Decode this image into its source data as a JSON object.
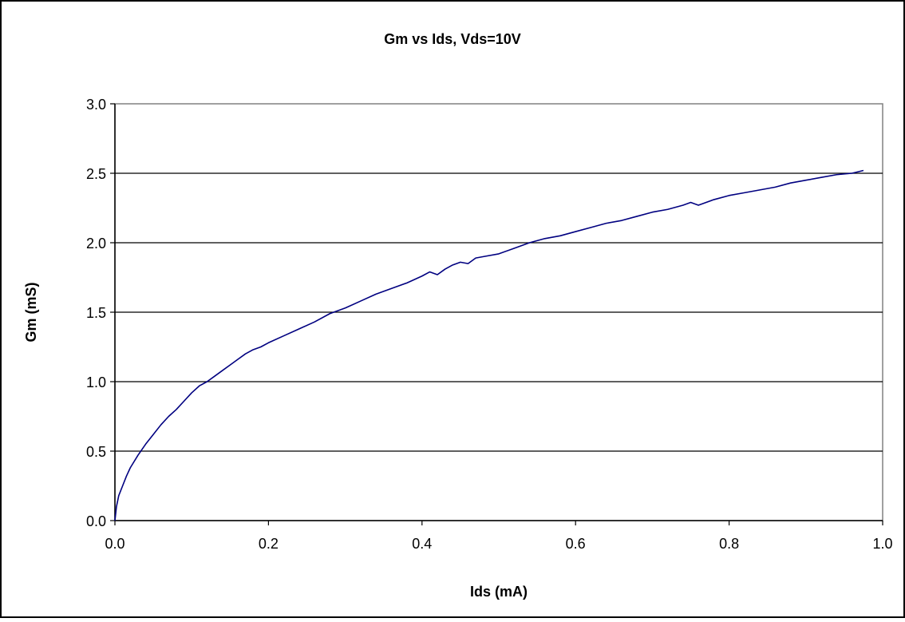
{
  "chart_data": {
    "type": "line",
    "title": "Gm vs Ids,  Vds=10V",
    "xlabel": "Ids (mA)",
    "ylabel": "Gm (mS)",
    "xlim": [
      0.0,
      1.0
    ],
    "ylim": [
      0.0,
      3.0
    ],
    "x_ticks": [
      "0.0",
      "0.2",
      "0.4",
      "0.6",
      "0.8",
      "1.0"
    ],
    "y_ticks": [
      "0.0",
      "0.5",
      "1.0",
      "1.5",
      "2.0",
      "2.5",
      "3.0"
    ],
    "grid": "horizontal",
    "legend": "none",
    "line_color": "#000080",
    "series": [
      {
        "x": [
          0.0,
          0.002,
          0.005,
          0.01,
          0.015,
          0.02,
          0.03,
          0.04,
          0.05,
          0.06,
          0.07,
          0.08,
          0.09,
          0.1,
          0.11,
          0.12,
          0.13,
          0.14,
          0.15,
          0.16,
          0.17,
          0.18,
          0.19,
          0.2,
          0.22,
          0.24,
          0.26,
          0.28,
          0.3,
          0.32,
          0.34,
          0.36,
          0.38,
          0.4,
          0.41,
          0.42,
          0.43,
          0.44,
          0.45,
          0.46,
          0.47,
          0.48,
          0.5,
          0.52,
          0.54,
          0.56,
          0.58,
          0.6,
          0.62,
          0.64,
          0.66,
          0.68,
          0.7,
          0.72,
          0.74,
          0.75,
          0.76,
          0.78,
          0.8,
          0.82,
          0.84,
          0.86,
          0.88,
          0.9,
          0.92,
          0.94,
          0.96,
          0.975
        ],
        "values": [
          0.0,
          0.1,
          0.18,
          0.25,
          0.32,
          0.38,
          0.47,
          0.55,
          0.62,
          0.69,
          0.75,
          0.8,
          0.86,
          0.92,
          0.97,
          1.0,
          1.04,
          1.08,
          1.12,
          1.16,
          1.2,
          1.23,
          1.25,
          1.28,
          1.33,
          1.38,
          1.43,
          1.49,
          1.53,
          1.58,
          1.63,
          1.67,
          1.71,
          1.76,
          1.79,
          1.77,
          1.81,
          1.84,
          1.86,
          1.85,
          1.89,
          1.9,
          1.92,
          1.96,
          2.0,
          2.03,
          2.05,
          2.08,
          2.11,
          2.14,
          2.16,
          2.19,
          2.22,
          2.24,
          2.27,
          2.29,
          2.27,
          2.31,
          2.34,
          2.36,
          2.38,
          2.4,
          2.43,
          2.45,
          2.47,
          2.49,
          2.5,
          2.52
        ]
      }
    ]
  }
}
